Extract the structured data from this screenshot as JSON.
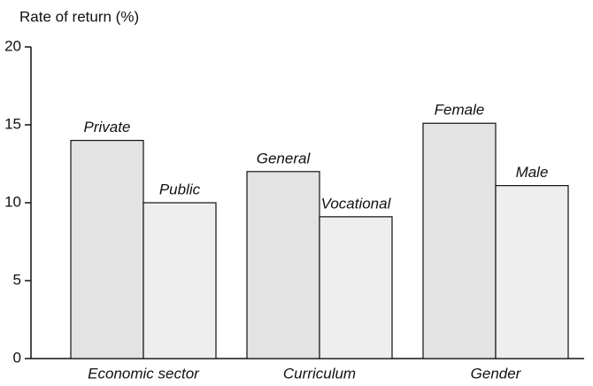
{
  "chart_data": {
    "type": "bar",
    "y_axis_label": "Rate of return (%)",
    "categories": [
      "Economic sector",
      "Curriculum",
      "Gender"
    ],
    "groups": [
      {
        "labels": [
          "Private",
          "Public"
        ],
        "values": [
          14,
          10
        ]
      },
      {
        "labels": [
          "General",
          "Vocational"
        ],
        "values": [
          12,
          9.1
        ]
      },
      {
        "labels": [
          "Female",
          "Male"
        ],
        "values": [
          15.1,
          11.1
        ]
      }
    ],
    "colors": [
      "#e3e3e3",
      "#eeeeee"
    ],
    "ylim": [
      0,
      20
    ],
    "yticks": [
      0,
      5,
      10,
      15,
      20
    ]
  }
}
